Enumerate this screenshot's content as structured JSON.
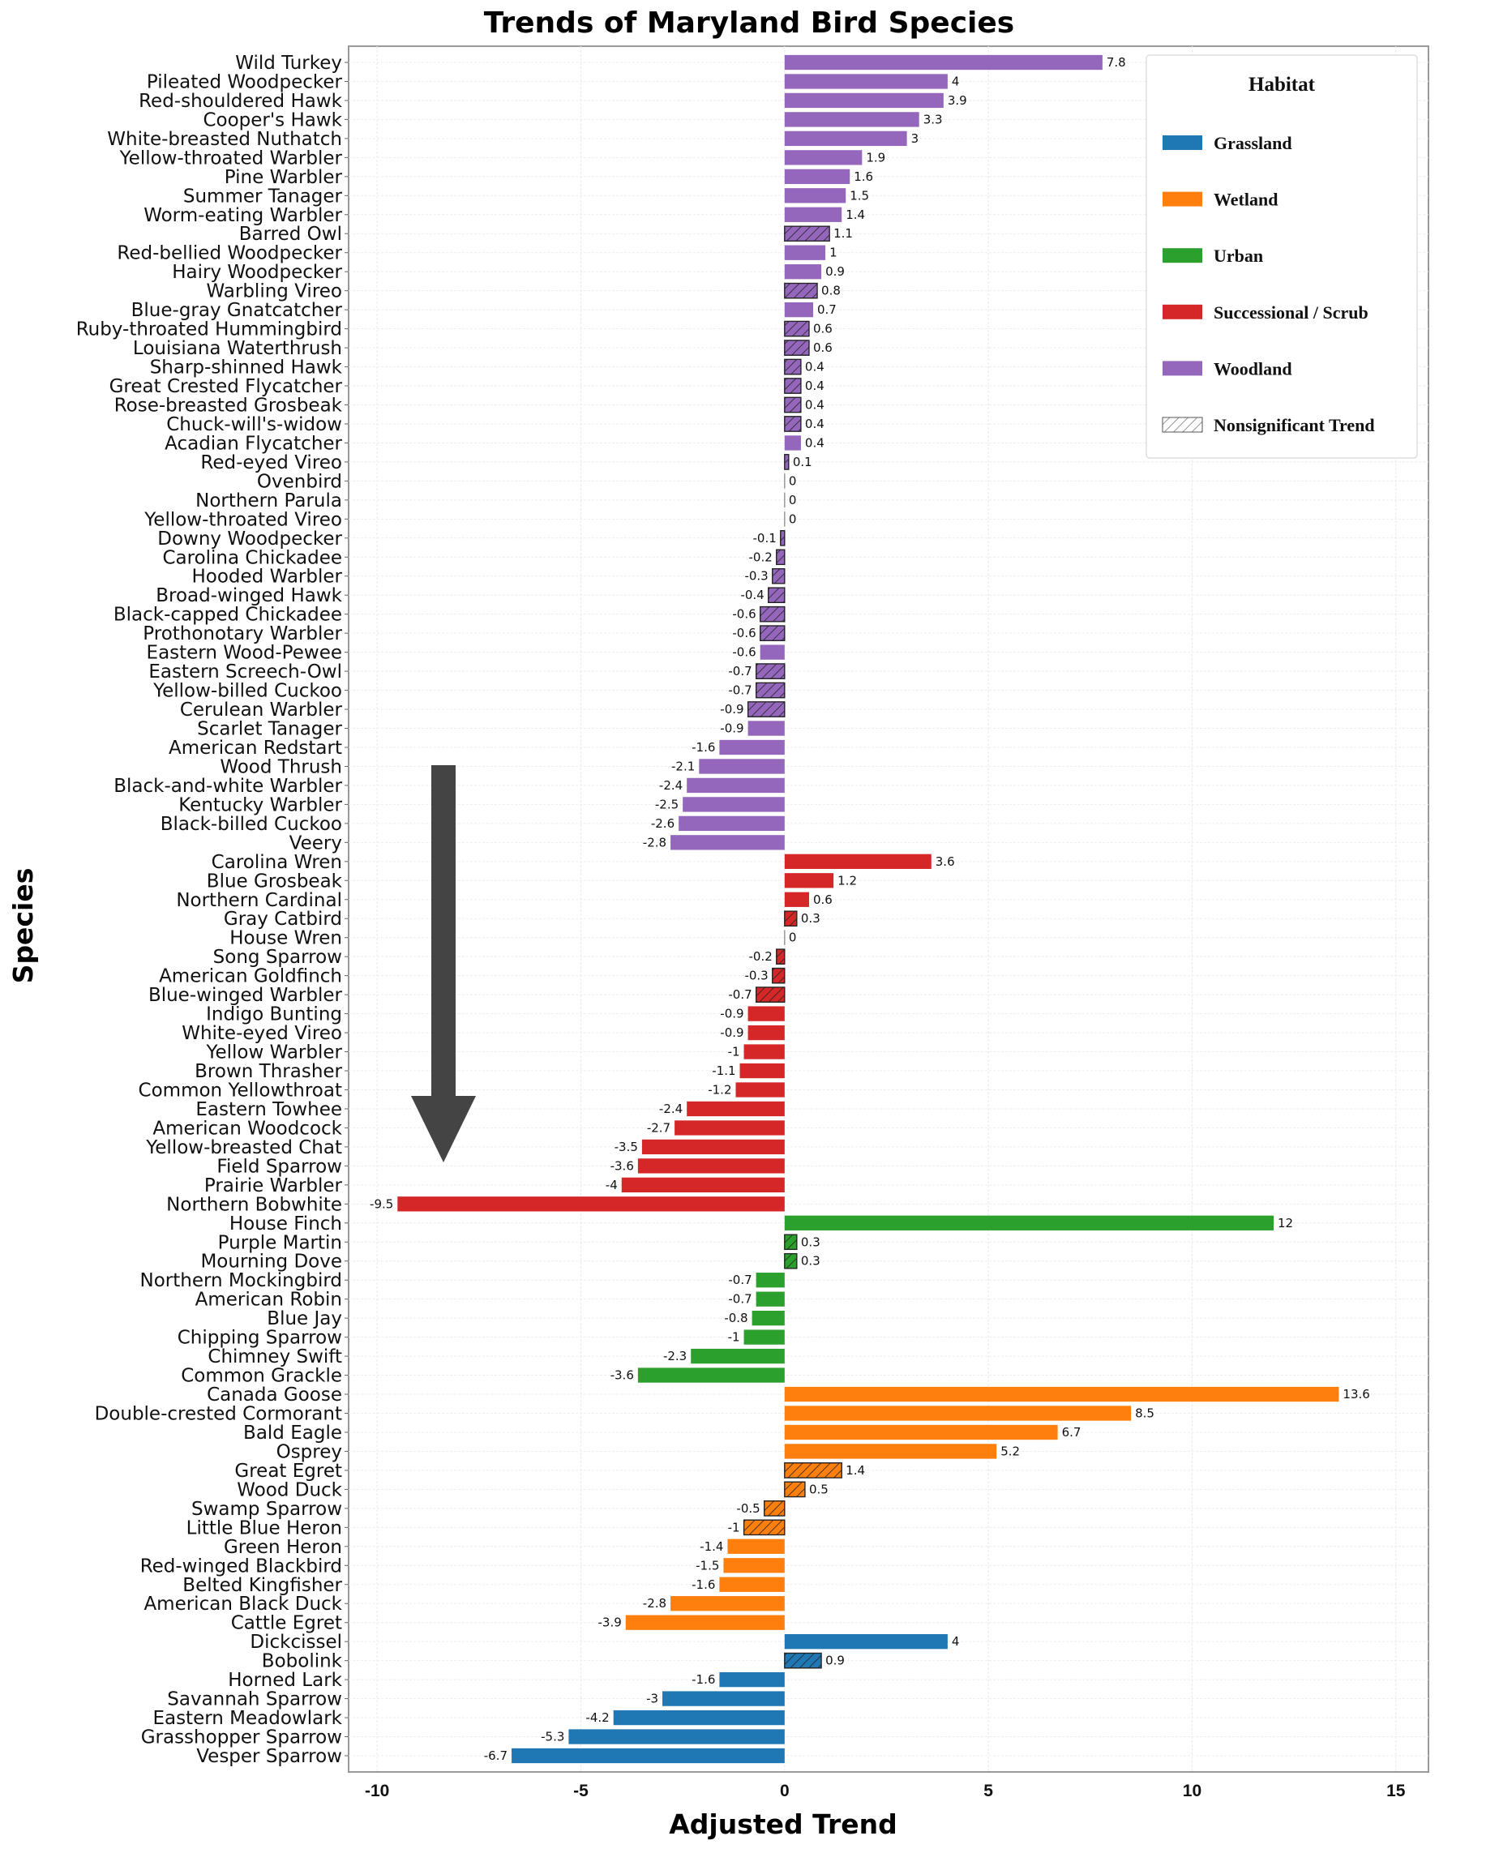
{
  "chart_data": {
    "type": "bar",
    "orientation": "horizontal",
    "title": "Trends of Maryland Bird Species",
    "xlabel": "Adjusted Trend",
    "ylabel": "Species",
    "xlim": [
      -10.7,
      15.8
    ],
    "xticks": [
      -10,
      -5,
      0,
      5,
      10,
      15
    ],
    "xtick_labels": [
      "-10",
      "-5",
      "0",
      "5",
      "10",
      "15"
    ],
    "grid": true,
    "legend": {
      "title": "Habitat",
      "placement": "top-right",
      "entries": [
        {
          "label": "Grassland",
          "habitat": "Grassland"
        },
        {
          "label": "Wetland",
          "habitat": "Wetland"
        },
        {
          "label": "Urban",
          "habitat": "Urban"
        },
        {
          "label": "Successional / Scrub",
          "habitat": "Successional / Scrub"
        },
        {
          "label": "Woodland",
          "habitat": "Woodland"
        },
        {
          "label": "Nonsignificant Trend",
          "habitat": "hatch"
        }
      ]
    },
    "colors": {
      "Grassland": "#1f77b4",
      "Wetland": "#ff7f0e",
      "Urban": "#2ca02c",
      "Successional / Scrub": "#d62728",
      "Woodland": "#9467bd"
    },
    "annotation": {
      "type": "arrow",
      "direction": "down",
      "points_to": "Northern Bobwhite",
      "color": "#444444"
    },
    "bars": [
      {
        "species": "Wild Turkey",
        "value": 7.8,
        "habitat": "Woodland",
        "nonsignificant": false
      },
      {
        "species": "Pileated Woodpecker",
        "value": 4,
        "habitat": "Woodland",
        "nonsignificant": false
      },
      {
        "species": "Red-shouldered Hawk",
        "value": 3.9,
        "habitat": "Woodland",
        "nonsignificant": false
      },
      {
        "species": "Cooper's Hawk",
        "value": 3.3,
        "habitat": "Woodland",
        "nonsignificant": false
      },
      {
        "species": "White-breasted Nuthatch",
        "value": 3,
        "habitat": "Woodland",
        "nonsignificant": false
      },
      {
        "species": "Yellow-throated Warbler",
        "value": 1.9,
        "habitat": "Woodland",
        "nonsignificant": false
      },
      {
        "species": "Pine Warbler",
        "value": 1.6,
        "habitat": "Woodland",
        "nonsignificant": false
      },
      {
        "species": "Summer Tanager",
        "value": 1.5,
        "habitat": "Woodland",
        "nonsignificant": false
      },
      {
        "species": "Worm-eating Warbler",
        "value": 1.4,
        "habitat": "Woodland",
        "nonsignificant": false
      },
      {
        "species": "Barred Owl",
        "value": 1.1,
        "habitat": "Woodland",
        "nonsignificant": true
      },
      {
        "species": "Red-bellied Woodpecker",
        "value": 1,
        "habitat": "Woodland",
        "nonsignificant": false
      },
      {
        "species": "Hairy Woodpecker",
        "value": 0.9,
        "habitat": "Woodland",
        "nonsignificant": false
      },
      {
        "species": "Warbling Vireo",
        "value": 0.8,
        "habitat": "Woodland",
        "nonsignificant": true
      },
      {
        "species": "Blue-gray Gnatcatcher",
        "value": 0.7,
        "habitat": "Woodland",
        "nonsignificant": false
      },
      {
        "species": "Ruby-throated Hummingbird",
        "value": 0.6,
        "habitat": "Woodland",
        "nonsignificant": true
      },
      {
        "species": "Louisiana Waterthrush",
        "value": 0.6,
        "habitat": "Woodland",
        "nonsignificant": true
      },
      {
        "species": "Sharp-shinned Hawk",
        "value": 0.4,
        "habitat": "Woodland",
        "nonsignificant": true
      },
      {
        "species": "Great Crested Flycatcher",
        "value": 0.4,
        "habitat": "Woodland",
        "nonsignificant": true
      },
      {
        "species": "Rose-breasted Grosbeak",
        "value": 0.4,
        "habitat": "Woodland",
        "nonsignificant": true
      },
      {
        "species": "Chuck-will's-widow",
        "value": 0.4,
        "habitat": "Woodland",
        "nonsignificant": true
      },
      {
        "species": "Acadian Flycatcher",
        "value": 0.4,
        "habitat": "Woodland",
        "nonsignificant": false
      },
      {
        "species": "Red-eyed Vireo",
        "value": 0.1,
        "habitat": "Woodland",
        "nonsignificant": true
      },
      {
        "species": "Ovenbird",
        "value": 0,
        "habitat": "Woodland",
        "nonsignificant": false
      },
      {
        "species": "Northern Parula",
        "value": 0,
        "habitat": "Woodland",
        "nonsignificant": false
      },
      {
        "species": "Yellow-throated Vireo",
        "value": 0,
        "habitat": "Woodland",
        "nonsignificant": false
      },
      {
        "species": "Downy Woodpecker",
        "value": -0.1,
        "habitat": "Woodland",
        "nonsignificant": true
      },
      {
        "species": "Carolina Chickadee",
        "value": -0.2,
        "habitat": "Woodland",
        "nonsignificant": true
      },
      {
        "species": "Hooded Warbler",
        "value": -0.3,
        "habitat": "Woodland",
        "nonsignificant": true
      },
      {
        "species": "Broad-winged Hawk",
        "value": -0.4,
        "habitat": "Woodland",
        "nonsignificant": true
      },
      {
        "species": "Black-capped Chickadee",
        "value": -0.6,
        "habitat": "Woodland",
        "nonsignificant": true
      },
      {
        "species": "Prothonotary Warbler",
        "value": -0.6,
        "habitat": "Woodland",
        "nonsignificant": true
      },
      {
        "species": "Eastern Wood-Pewee",
        "value": -0.6,
        "habitat": "Woodland",
        "nonsignificant": false
      },
      {
        "species": "Eastern Screech-Owl",
        "value": -0.7,
        "habitat": "Woodland",
        "nonsignificant": true
      },
      {
        "species": "Yellow-billed Cuckoo",
        "value": -0.7,
        "habitat": "Woodland",
        "nonsignificant": true
      },
      {
        "species": "Cerulean Warbler",
        "value": -0.9,
        "habitat": "Woodland",
        "nonsignificant": true
      },
      {
        "species": "Scarlet Tanager",
        "value": -0.9,
        "habitat": "Woodland",
        "nonsignificant": false
      },
      {
        "species": "American Redstart",
        "value": -1.6,
        "habitat": "Woodland",
        "nonsignificant": false
      },
      {
        "species": "Wood Thrush",
        "value": -2.1,
        "habitat": "Woodland",
        "nonsignificant": false
      },
      {
        "species": "Black-and-white Warbler",
        "value": -2.4,
        "habitat": "Woodland",
        "nonsignificant": false
      },
      {
        "species": "Kentucky Warbler",
        "value": -2.5,
        "habitat": "Woodland",
        "nonsignificant": false
      },
      {
        "species": "Black-billed Cuckoo",
        "value": -2.6,
        "habitat": "Woodland",
        "nonsignificant": false
      },
      {
        "species": "Veery",
        "value": -2.8,
        "habitat": "Woodland",
        "nonsignificant": false
      },
      {
        "species": "Carolina Wren",
        "value": 3.6,
        "habitat": "Successional / Scrub",
        "nonsignificant": false
      },
      {
        "species": "Blue Grosbeak",
        "value": 1.2,
        "habitat": "Successional / Scrub",
        "nonsignificant": false
      },
      {
        "species": "Northern Cardinal",
        "value": 0.6,
        "habitat": "Successional / Scrub",
        "nonsignificant": false
      },
      {
        "species": "Gray Catbird",
        "value": 0.3,
        "habitat": "Successional / Scrub",
        "nonsignificant": true
      },
      {
        "species": "House Wren",
        "value": 0,
        "habitat": "Successional / Scrub",
        "nonsignificant": false
      },
      {
        "species": "Song Sparrow",
        "value": -0.2,
        "habitat": "Successional / Scrub",
        "nonsignificant": true
      },
      {
        "species": "American Goldfinch",
        "value": -0.3,
        "habitat": "Successional / Scrub",
        "nonsignificant": true
      },
      {
        "species": "Blue-winged Warbler",
        "value": -0.7,
        "habitat": "Successional / Scrub",
        "nonsignificant": true
      },
      {
        "species": "Indigo Bunting",
        "value": -0.9,
        "habitat": "Successional / Scrub",
        "nonsignificant": false
      },
      {
        "species": "White-eyed Vireo",
        "value": -0.9,
        "habitat": "Successional / Scrub",
        "nonsignificant": false
      },
      {
        "species": "Yellow Warbler",
        "value": -1,
        "habitat": "Successional / Scrub",
        "nonsignificant": false
      },
      {
        "species": "Brown Thrasher",
        "value": -1.1,
        "habitat": "Successional / Scrub",
        "nonsignificant": false
      },
      {
        "species": "Common Yellowthroat",
        "value": -1.2,
        "habitat": "Successional / Scrub",
        "nonsignificant": false
      },
      {
        "species": "Eastern Towhee",
        "value": -2.4,
        "habitat": "Successional / Scrub",
        "nonsignificant": false
      },
      {
        "species": "American Woodcock",
        "value": -2.7,
        "habitat": "Successional / Scrub",
        "nonsignificant": false
      },
      {
        "species": "Yellow-breasted Chat",
        "value": -3.5,
        "habitat": "Successional / Scrub",
        "nonsignificant": false
      },
      {
        "species": "Field Sparrow",
        "value": -3.6,
        "habitat": "Successional / Scrub",
        "nonsignificant": false
      },
      {
        "species": "Prairie Warbler",
        "value": -4,
        "habitat": "Successional / Scrub",
        "nonsignificant": false
      },
      {
        "species": "Northern Bobwhite",
        "value": -9.5,
        "habitat": "Successional / Scrub",
        "nonsignificant": false
      },
      {
        "species": "House Finch",
        "value": 12,
        "habitat": "Urban",
        "nonsignificant": false
      },
      {
        "species": "Purple Martin",
        "value": 0.3,
        "habitat": "Urban",
        "nonsignificant": true
      },
      {
        "species": "Mourning Dove",
        "value": 0.3,
        "habitat": "Urban",
        "nonsignificant": true
      },
      {
        "species": "Northern Mockingbird",
        "value": -0.7,
        "habitat": "Urban",
        "nonsignificant": false
      },
      {
        "species": "American Robin",
        "value": -0.7,
        "habitat": "Urban",
        "nonsignificant": false
      },
      {
        "species": "Blue Jay",
        "value": -0.8,
        "habitat": "Urban",
        "nonsignificant": false
      },
      {
        "species": "Chipping Sparrow",
        "value": -1,
        "habitat": "Urban",
        "nonsignificant": false
      },
      {
        "species": "Chimney Swift",
        "value": -2.3,
        "habitat": "Urban",
        "nonsignificant": false
      },
      {
        "species": "Common Grackle",
        "value": -3.6,
        "habitat": "Urban",
        "nonsignificant": false
      },
      {
        "species": "Canada Goose",
        "value": 13.6,
        "habitat": "Wetland",
        "nonsignificant": false
      },
      {
        "species": "Double-crested Cormorant",
        "value": 8.5,
        "habitat": "Wetland",
        "nonsignificant": false
      },
      {
        "species": "Bald Eagle",
        "value": 6.7,
        "habitat": "Wetland",
        "nonsignificant": false
      },
      {
        "species": "Osprey",
        "value": 5.2,
        "habitat": "Wetland",
        "nonsignificant": false
      },
      {
        "species": "Great Egret",
        "value": 1.4,
        "habitat": "Wetland",
        "nonsignificant": true
      },
      {
        "species": "Wood Duck",
        "value": 0.5,
        "habitat": "Wetland",
        "nonsignificant": true
      },
      {
        "species": "Swamp Sparrow",
        "value": -0.5,
        "habitat": "Wetland",
        "nonsignificant": true
      },
      {
        "species": "Little Blue Heron",
        "value": -1,
        "habitat": "Wetland",
        "nonsignificant": true
      },
      {
        "species": "Green Heron",
        "value": -1.4,
        "habitat": "Wetland",
        "nonsignificant": false
      },
      {
        "species": "Red-winged Blackbird",
        "value": -1.5,
        "habitat": "Wetland",
        "nonsignificant": false
      },
      {
        "species": "Belted Kingfisher",
        "value": -1.6,
        "habitat": "Wetland",
        "nonsignificant": false
      },
      {
        "species": "American Black Duck",
        "value": -2.8,
        "habitat": "Wetland",
        "nonsignificant": false
      },
      {
        "species": "Cattle Egret",
        "value": -3.9,
        "habitat": "Wetland",
        "nonsignificant": false
      },
      {
        "species": "Dickcissel",
        "value": 4,
        "habitat": "Grassland",
        "nonsignificant": false
      },
      {
        "species": "Bobolink",
        "value": 0.9,
        "habitat": "Grassland",
        "nonsignificant": true
      },
      {
        "species": "Horned Lark",
        "value": -1.6,
        "habitat": "Grassland",
        "nonsignificant": false
      },
      {
        "species": "Savannah Sparrow",
        "value": -3,
        "habitat": "Grassland",
        "nonsignificant": false
      },
      {
        "species": "Eastern Meadowlark",
        "value": -4.2,
        "habitat": "Grassland",
        "nonsignificant": false
      },
      {
        "species": "Grasshopper Sparrow",
        "value": -5.3,
        "habitat": "Grassland",
        "nonsignificant": false
      },
      {
        "species": "Vesper Sparrow",
        "value": -6.7,
        "habitat": "Grassland",
        "nonsignificant": false
      }
    ]
  }
}
